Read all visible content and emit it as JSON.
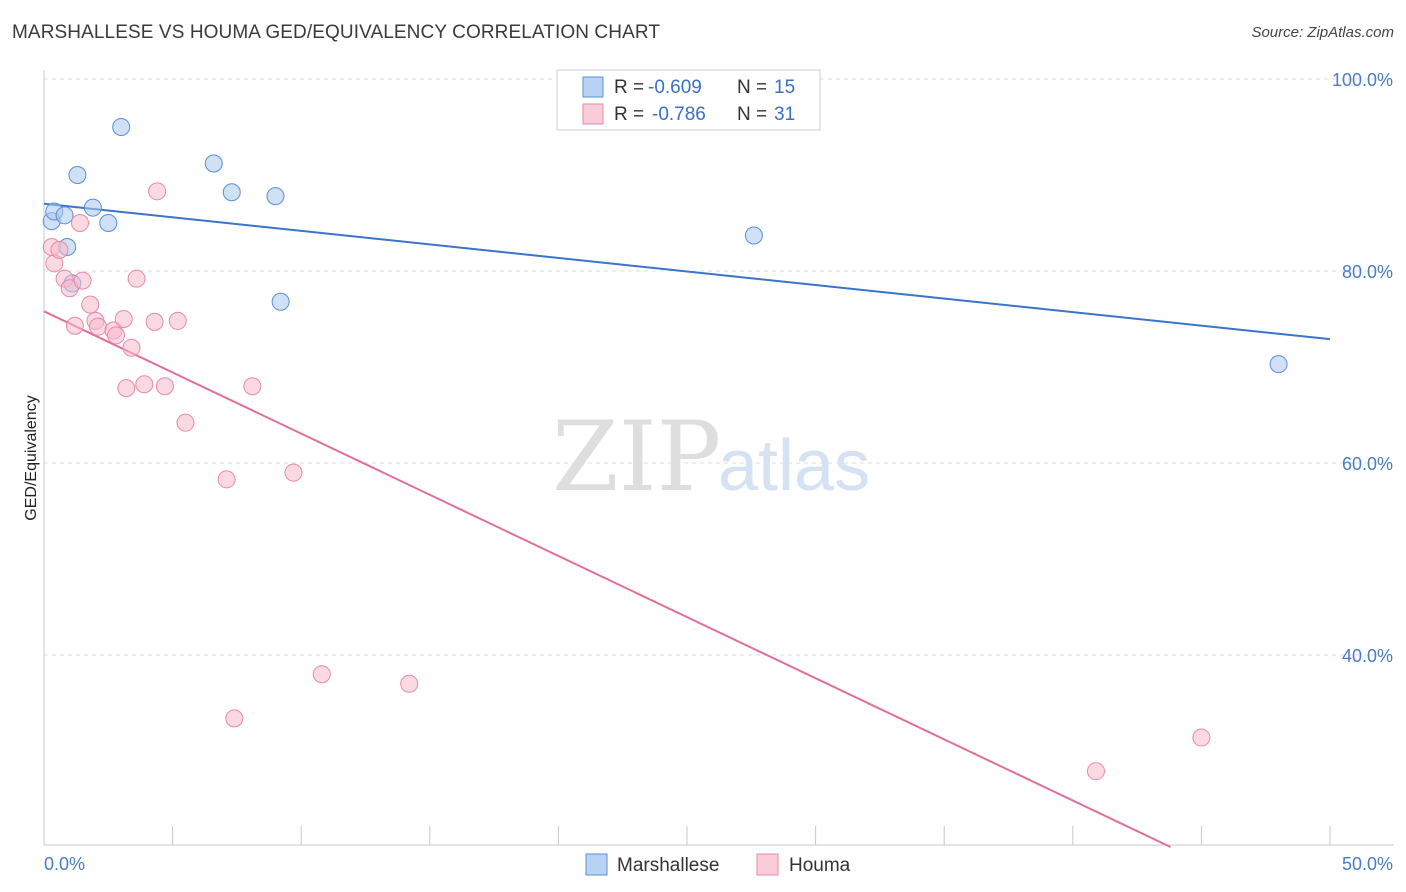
{
  "title": "MARSHALLESE VS HOUMA GED/EQUIVALENCY CORRELATION CHART",
  "source": "Source: ZipAtlas.com",
  "watermark": {
    "zip": "ZIP",
    "atlas": "atlas"
  },
  "colors": {
    "blue_fill": "#a9c8ef",
    "blue_stroke": "#5b8fd6",
    "blue_line": "#3a74cc",
    "pink_fill": "#f7b9cb",
    "pink_stroke": "#e88aa8",
    "pink_line": "#e0709a",
    "axis_label": "#4a7cc4",
    "grid": "#dddddd"
  },
  "legend": {
    "rows": [
      {
        "series": "Marshallese",
        "r_label": "R =",
        "r_value": "-0.609",
        "n_label": "N =",
        "n_value": "15"
      },
      {
        "series": "Houma",
        "r_label": "R =",
        "r_value": "-0.786",
        "n_label": "N =",
        "n_value": "31"
      }
    ]
  },
  "chart_data": {
    "type": "scatter",
    "title": "MARSHALLESE VS HOUMA GED/EQUIVALENCY CORRELATION CHART",
    "xlabel": "",
    "ylabel": "GED/Equivalency",
    "xlim": [
      0,
      50
    ],
    "ylim": [
      20,
      102
    ],
    "x_tick_labels": [
      {
        "value": 0,
        "label": "0.0%"
      },
      {
        "value": 50,
        "label": "50.0%"
      }
    ],
    "y_tick_labels": [
      {
        "value": 100,
        "label": "100.0%"
      },
      {
        "value": 80,
        "label": "80.0%"
      },
      {
        "value": 60,
        "label": "60.0%"
      },
      {
        "value": 40,
        "label": "40.0%"
      }
    ],
    "y_gridlines": [
      100,
      80,
      60,
      40
    ],
    "series": [
      {
        "name": "Marshallese",
        "color": "blue",
        "points": [
          [
            0.3,
            85.2
          ],
          [
            0.4,
            86.2
          ],
          [
            0.8,
            85.8
          ],
          [
            0.9,
            82.5
          ],
          [
            1.1,
            78.7
          ],
          [
            1.3,
            90.0
          ],
          [
            1.9,
            86.6
          ],
          [
            2.5,
            85.0
          ],
          [
            3.0,
            95.0
          ],
          [
            6.6,
            91.2
          ],
          [
            7.3,
            88.2
          ],
          [
            9.0,
            87.8
          ],
          [
            9.2,
            76.8
          ],
          [
            27.6,
            83.7
          ],
          [
            48.0,
            70.3
          ]
        ],
        "trend": {
          "x": [
            0,
            50
          ],
          "y": [
            87.0,
            72.9
          ]
        }
      },
      {
        "name": "Houma",
        "color": "pink",
        "points": [
          [
            0.3,
            82.5
          ],
          [
            0.4,
            80.8
          ],
          [
            0.6,
            82.2
          ],
          [
            0.8,
            79.2
          ],
          [
            1.0,
            78.2
          ],
          [
            1.2,
            74.3
          ],
          [
            1.4,
            85.0
          ],
          [
            1.5,
            79.0
          ],
          [
            1.8,
            76.5
          ],
          [
            2.0,
            74.8
          ],
          [
            2.1,
            74.2
          ],
          [
            2.7,
            73.8
          ],
          [
            2.8,
            73.3
          ],
          [
            3.1,
            75.0
          ],
          [
            3.2,
            67.8
          ],
          [
            3.4,
            72.0
          ],
          [
            3.6,
            79.2
          ],
          [
            3.9,
            68.2
          ],
          [
            4.3,
            74.7
          ],
          [
            4.4,
            88.3
          ],
          [
            4.7,
            68.0
          ],
          [
            5.2,
            74.8
          ],
          [
            5.5,
            64.2
          ],
          [
            7.1,
            58.3
          ],
          [
            7.4,
            33.4
          ],
          [
            8.1,
            68.0
          ],
          [
            9.7,
            59.0
          ],
          [
            10.8,
            38.0
          ],
          [
            14.2,
            37.0
          ],
          [
            40.9,
            27.9
          ],
          [
            45.0,
            31.4
          ]
        ],
        "trend": {
          "x": [
            0,
            43.8
          ],
          "y": [
            75.8,
            20.0
          ]
        }
      }
    ],
    "legend_position": "top-center",
    "bottom_legend": [
      "Marshallese",
      "Houma"
    ]
  }
}
